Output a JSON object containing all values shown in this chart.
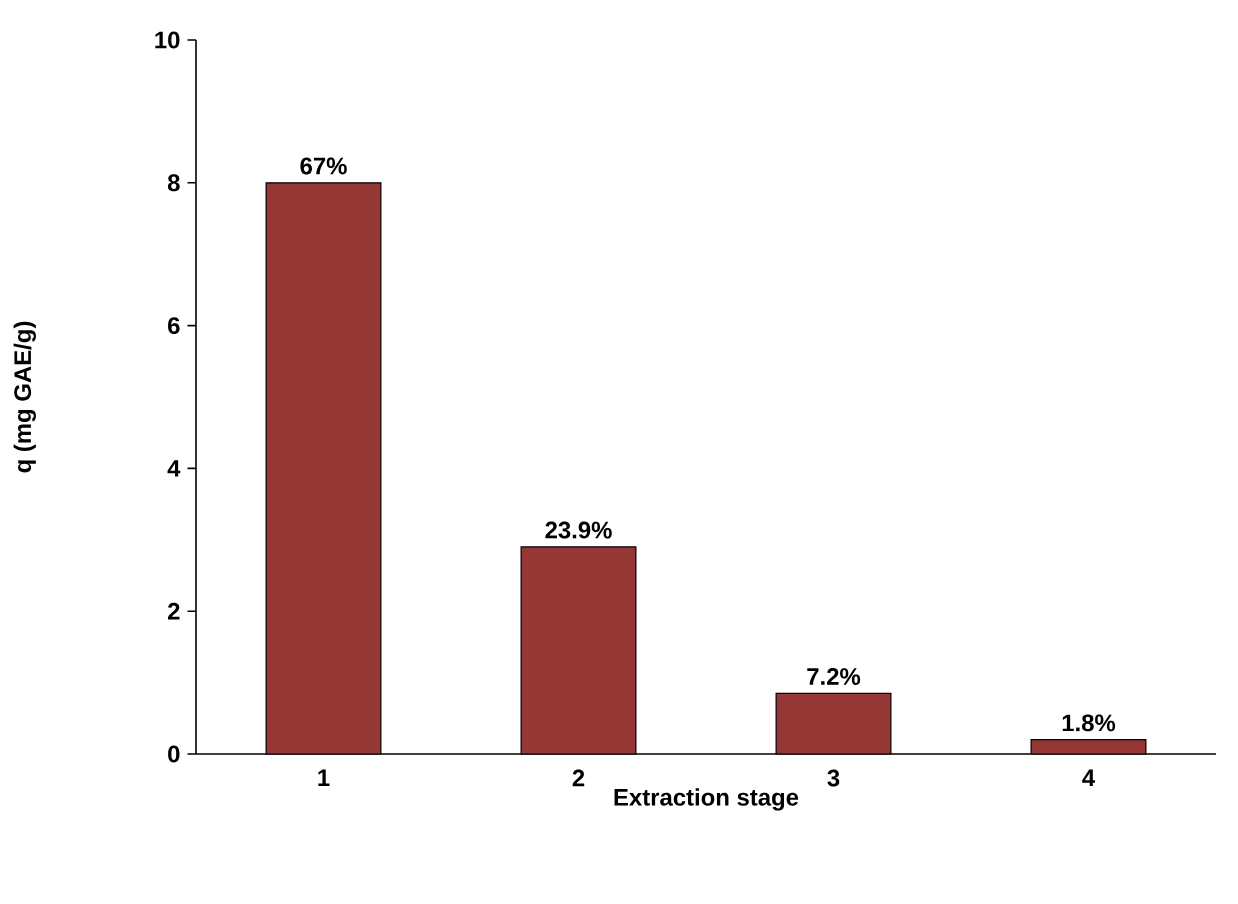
{
  "chart_data": {
    "type": "bar",
    "xlabel": "Extraction stage",
    "ylabel": "q (mg GAE/g)",
    "categories": [
      "1",
      "2",
      "3",
      "4"
    ],
    "values": [
      8.0,
      2.9,
      0.85,
      0.2
    ],
    "annotations": [
      {
        "text": "67%",
        "x": "1",
        "y": 8.0
      },
      {
        "text": "23.9%",
        "x": "2",
        "y": 2.9
      },
      {
        "text": "7.2%",
        "x": "3",
        "y": 0.85
      },
      {
        "text": "1.8%",
        "x": "4",
        "y": 0.2
      }
    ],
    "color": "#953735",
    "ylim": [
      0,
      10
    ],
    "yticks": [
      0,
      2,
      4,
      6,
      8,
      10
    ],
    "grid": false
  }
}
